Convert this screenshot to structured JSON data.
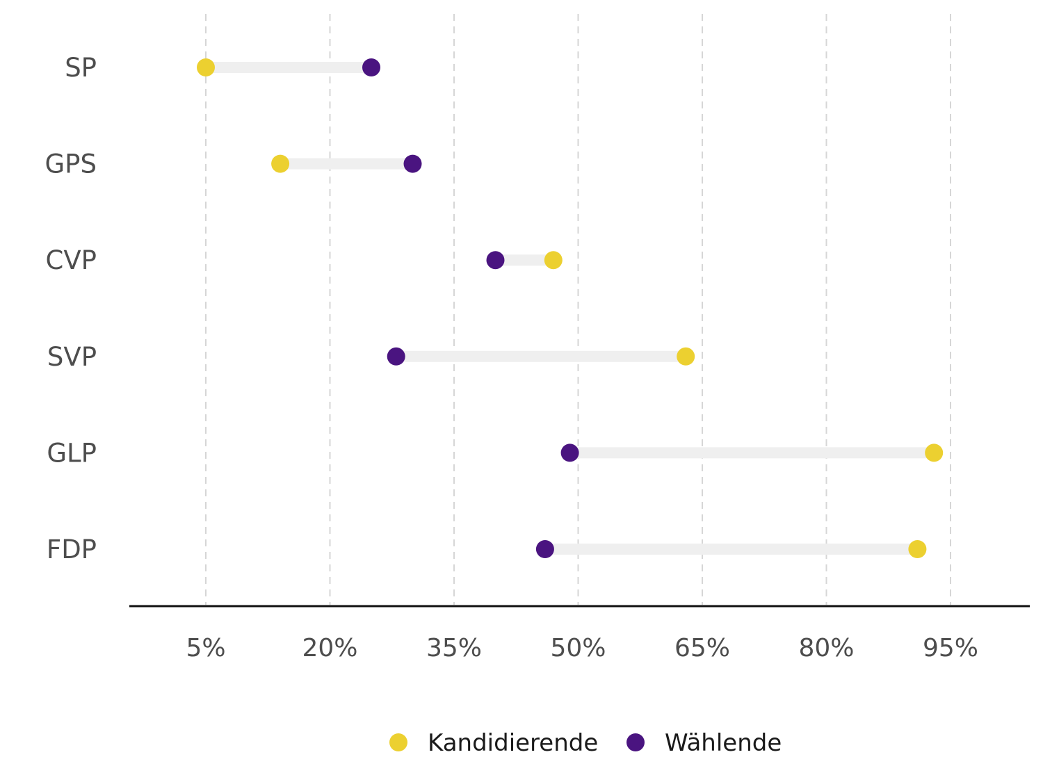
{
  "chart_data": {
    "type": "dumbbell",
    "categories": [
      "SP",
      "GPS",
      "CVP",
      "SVP",
      "GLP",
      "FDP"
    ],
    "series": [
      {
        "name": "Kandidierende",
        "color": "#ecd030",
        "values": [
          5,
          14,
          47,
          63,
          93,
          91
        ]
      },
      {
        "name": "Wählende",
        "color": "#4a1480",
        "values": [
          25,
          30,
          40,
          28,
          49,
          46
        ]
      }
    ],
    "x_ticks": [
      5,
      20,
      35,
      50,
      65,
      80,
      95
    ],
    "x_tick_labels": [
      "5%",
      "20%",
      "35%",
      "50%",
      "65%",
      "80%",
      "95%"
    ],
    "xlim": [
      -5,
      105
    ],
    "grid": "vertical-dashed",
    "legend_position": "bottom",
    "connector_color": "#efefef",
    "grid_color": "#d6d6d6",
    "axis_color": "#111111"
  }
}
